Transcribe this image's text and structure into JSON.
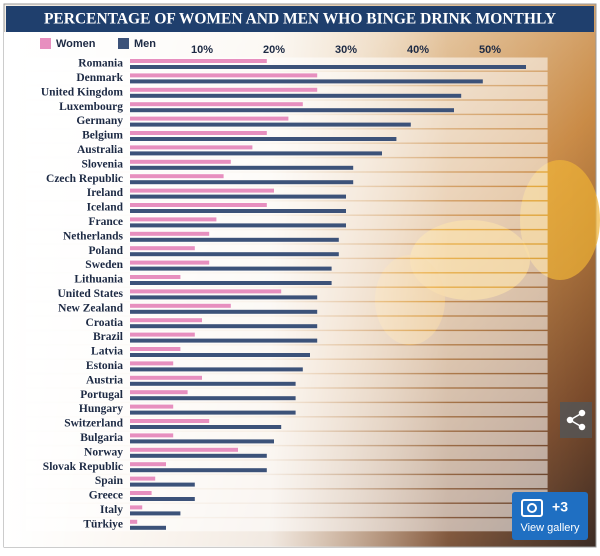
{
  "chart_data": {
    "type": "hbar",
    "title": "PERCENTAGE OF WOMEN AND MEN WHO BINGE DRINK MONTHLY",
    "categories": [
      "Romania",
      "Denmark",
      "United Kingdom",
      "Luxembourg",
      "Germany",
      "Belgium",
      "Australia",
      "Slovenia",
      "Czech Republic",
      "Ireland",
      "Iceland",
      "France",
      "Netherlands",
      "Poland",
      "Sweden",
      "Lithuania",
      "United States",
      "New Zealand",
      "Croatia",
      "Brazil",
      "Latvia",
      "Estonia",
      "Austria",
      "Portugal",
      "Hungary",
      "Switzerland",
      "Bulgaria",
      "Norway",
      "Slovak Republic",
      "Spain",
      "Greece",
      "Italy",
      "Türkiye"
    ],
    "series": [
      {
        "name": "Women",
        "color": "#e78fbf",
        "values": [
          19,
          26,
          26,
          24,
          22,
          19,
          17,
          14,
          13,
          20,
          19,
          12,
          11,
          9,
          11,
          7,
          21,
          14,
          10,
          9,
          7,
          6,
          10,
          8,
          6,
          11,
          6,
          15,
          5,
          3.5,
          3,
          1.7,
          1
        ]
      },
      {
        "name": "Men",
        "color": "#3c5279",
        "values": [
          55,
          49,
          46,
          45,
          39,
          37,
          35,
          31,
          31,
          30,
          30,
          30,
          29,
          29,
          28,
          28,
          26,
          26,
          26,
          26,
          25,
          24,
          23,
          23,
          23,
          21,
          20,
          19,
          19,
          9,
          9,
          7,
          5
        ]
      }
    ],
    "xlim": [
      0,
      58
    ],
    "xticks": [
      {
        "value": 10,
        "label": "10%"
      },
      {
        "value": 20,
        "label": "20%"
      },
      {
        "value": 30,
        "label": "30%"
      },
      {
        "value": 40,
        "label": "40%"
      },
      {
        "value": 50,
        "label": "50%"
      }
    ],
    "grid": false,
    "legend": "top-left"
  },
  "gallery": {
    "count": "+3",
    "label": "View gallery"
  }
}
